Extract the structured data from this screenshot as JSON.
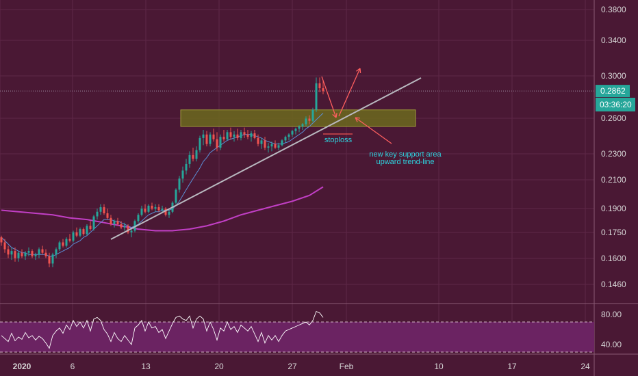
{
  "chart_data": {
    "type": "candlestick",
    "price_axis": {
      "ticks": [
        "0.3800",
        "0.3400",
        "0.3000",
        "0.2600",
        "0.2300",
        "0.2100",
        "0.1900",
        "0.1750",
        "0.1600",
        "0.1460"
      ],
      "scale": "log"
    },
    "rsi_axis": {
      "ticks": [
        "80.00",
        "40.00"
      ],
      "upper_band": 70,
      "lower_band": 30
    },
    "date_axis": {
      "ticks": [
        {
          "label": "2020",
          "bold": true
        },
        {
          "label": "6",
          "bold": false
        },
        {
          "label": "13",
          "bold": false
        },
        {
          "label": "20",
          "bold": false
        },
        {
          "label": "27",
          "bold": false
        },
        {
          "label": "Feb",
          "bold": false
        },
        {
          "label": "10",
          "bold": false
        },
        {
          "label": "17",
          "bold": false
        },
        {
          "label": "24",
          "bold": false
        }
      ]
    },
    "last_price": "0.2862",
    "countdown": "03:36:20",
    "annotations": {
      "stoploss": "stoploss",
      "support_line1": "new key support area",
      "support_line2": "upward trend-line"
    },
    "support_zone": {
      "low": 0.253,
      "high": 0.268
    },
    "colors": {
      "background": "#4a1834",
      "up": "#26a69a",
      "down": "#ef5350",
      "ma_fast": "#5b8fd6",
      "ma_slow": "#c13fc5",
      "trendline": "#b9b9c0",
      "zone": "#6b6a1e",
      "arrow": "#ff5f5f",
      "annotation": "#2dd4e0",
      "rsi_fill": "#6b2362",
      "rsi_line": "#ffffff",
      "badge": "#26a69a"
    },
    "candles_ohlc": [
      [
        0.172,
        0.173,
        0.167,
        0.169
      ],
      [
        0.169,
        0.171,
        0.163,
        0.165
      ],
      [
        0.165,
        0.167,
        0.16,
        0.162
      ],
      [
        0.162,
        0.166,
        0.159,
        0.164
      ],
      [
        0.164,
        0.166,
        0.158,
        0.16
      ],
      [
        0.16,
        0.164,
        0.158,
        0.163
      ],
      [
        0.163,
        0.165,
        0.16,
        0.161
      ],
      [
        0.161,
        0.164,
        0.159,
        0.163
      ],
      [
        0.163,
        0.166,
        0.161,
        0.164
      ],
      [
        0.164,
        0.165,
        0.16,
        0.161
      ],
      [
        0.161,
        0.163,
        0.159,
        0.162
      ],
      [
        0.162,
        0.166,
        0.16,
        0.165
      ],
      [
        0.165,
        0.167,
        0.162,
        0.163
      ],
      [
        0.163,
        0.165,
        0.16,
        0.161
      ],
      [
        0.161,
        0.163,
        0.155,
        0.157
      ],
      [
        0.157,
        0.163,
        0.155,
        0.162
      ],
      [
        0.162,
        0.166,
        0.16,
        0.165
      ],
      [
        0.165,
        0.17,
        0.164,
        0.169
      ],
      [
        0.169,
        0.171,
        0.166,
        0.167
      ],
      [
        0.167,
        0.172,
        0.166,
        0.171
      ],
      [
        0.171,
        0.174,
        0.169,
        0.17
      ],
      [
        0.17,
        0.176,
        0.169,
        0.175
      ],
      [
        0.175,
        0.178,
        0.172,
        0.173
      ],
      [
        0.173,
        0.178,
        0.172,
        0.177
      ],
      [
        0.177,
        0.178,
        0.173,
        0.174
      ],
      [
        0.174,
        0.18,
        0.173,
        0.179
      ],
      [
        0.179,
        0.182,
        0.176,
        0.177
      ],
      [
        0.177,
        0.186,
        0.176,
        0.185
      ],
      [
        0.185,
        0.19,
        0.183,
        0.188
      ],
      [
        0.188,
        0.193,
        0.186,
        0.191
      ],
      [
        0.191,
        0.193,
        0.186,
        0.187
      ],
      [
        0.187,
        0.19,
        0.183,
        0.184
      ],
      [
        0.184,
        0.186,
        0.179,
        0.18
      ],
      [
        0.18,
        0.183,
        0.178,
        0.182
      ],
      [
        0.182,
        0.184,
        0.179,
        0.18
      ],
      [
        0.18,
        0.182,
        0.177,
        0.178
      ],
      [
        0.178,
        0.181,
        0.176,
        0.179
      ],
      [
        0.179,
        0.18,
        0.174,
        0.175
      ],
      [
        0.175,
        0.177,
        0.172,
        0.176
      ],
      [
        0.176,
        0.183,
        0.175,
        0.182
      ],
      [
        0.182,
        0.187,
        0.181,
        0.186
      ],
      [
        0.186,
        0.192,
        0.185,
        0.19
      ],
      [
        0.19,
        0.193,
        0.187,
        0.188
      ],
      [
        0.188,
        0.193,
        0.187,
        0.192
      ],
      [
        0.192,
        0.194,
        0.189,
        0.19
      ],
      [
        0.19,
        0.193,
        0.188,
        0.191
      ],
      [
        0.191,
        0.193,
        0.188,
        0.189
      ],
      [
        0.189,
        0.192,
        0.187,
        0.19
      ],
      [
        0.19,
        0.191,
        0.185,
        0.186
      ],
      [
        0.186,
        0.189,
        0.184,
        0.188
      ],
      [
        0.188,
        0.195,
        0.187,
        0.194
      ],
      [
        0.194,
        0.204,
        0.193,
        0.203
      ],
      [
        0.203,
        0.213,
        0.201,
        0.211
      ],
      [
        0.211,
        0.22,
        0.208,
        0.217
      ],
      [
        0.217,
        0.226,
        0.214,
        0.222
      ],
      [
        0.222,
        0.232,
        0.219,
        0.229
      ],
      [
        0.229,
        0.235,
        0.224,
        0.226
      ],
      [
        0.226,
        0.236,
        0.224,
        0.233
      ],
      [
        0.233,
        0.245,
        0.231,
        0.243
      ],
      [
        0.243,
        0.25,
        0.237,
        0.246
      ],
      [
        0.246,
        0.249,
        0.236,
        0.238
      ],
      [
        0.238,
        0.248,
        0.236,
        0.246
      ],
      [
        0.246,
        0.251,
        0.24,
        0.242
      ],
      [
        0.242,
        0.248,
        0.232,
        0.235
      ],
      [
        0.235,
        0.246,
        0.233,
        0.244
      ],
      [
        0.244,
        0.25,
        0.24,
        0.242
      ],
      [
        0.242,
        0.25,
        0.241,
        0.248
      ],
      [
        0.248,
        0.252,
        0.242,
        0.244
      ],
      [
        0.244,
        0.249,
        0.24,
        0.246
      ],
      [
        0.246,
        0.251,
        0.241,
        0.243
      ],
      [
        0.243,
        0.25,
        0.241,
        0.248
      ],
      [
        0.248,
        0.252,
        0.243,
        0.246
      ],
      [
        0.246,
        0.25,
        0.242,
        0.244
      ],
      [
        0.244,
        0.249,
        0.24,
        0.247
      ],
      [
        0.247,
        0.25,
        0.242,
        0.243
      ],
      [
        0.243,
        0.246,
        0.236,
        0.238
      ],
      [
        0.238,
        0.243,
        0.234,
        0.241
      ],
      [
        0.241,
        0.244,
        0.233,
        0.235
      ],
      [
        0.235,
        0.239,
        0.231,
        0.236
      ],
      [
        0.236,
        0.24,
        0.232,
        0.238
      ],
      [
        0.238,
        0.241,
        0.234,
        0.235
      ],
      [
        0.235,
        0.239,
        0.233,
        0.237
      ],
      [
        0.237,
        0.242,
        0.236,
        0.241
      ],
      [
        0.241,
        0.245,
        0.239,
        0.244
      ],
      [
        0.244,
        0.247,
        0.241,
        0.246
      ],
      [
        0.246,
        0.25,
        0.244,
        0.249
      ],
      [
        0.249,
        0.252,
        0.246,
        0.251
      ],
      [
        0.251,
        0.254,
        0.248,
        0.253
      ],
      [
        0.253,
        0.256,
        0.25,
        0.255
      ],
      [
        0.255,
        0.262,
        0.253,
        0.26
      ],
      [
        0.26,
        0.263,
        0.255,
        0.258
      ],
      [
        0.258,
        0.27,
        0.257,
        0.268
      ],
      [
        0.268,
        0.3,
        0.266,
        0.294
      ],
      [
        0.294,
        0.3,
        0.285,
        0.289
      ],
      [
        0.289,
        0.297,
        0.283,
        0.286
      ]
    ],
    "ma_fast": [
      0.172,
      0.17,
      0.168,
      0.166,
      0.165,
      0.164,
      0.163,
      0.163,
      0.162,
      0.162,
      0.162,
      0.162,
      0.162,
      0.162,
      0.161,
      0.161,
      0.162,
      0.163,
      0.164,
      0.165,
      0.166,
      0.168,
      0.169,
      0.17,
      0.172,
      0.173,
      0.175,
      0.177,
      0.179,
      0.181,
      0.183,
      0.183,
      0.183,
      0.182,
      0.182,
      0.181,
      0.18,
      0.179,
      0.178,
      0.179,
      0.18,
      0.182,
      0.184,
      0.186,
      0.187,
      0.188,
      0.188,
      0.189,
      0.189,
      0.189,
      0.19,
      0.192,
      0.195,
      0.199,
      0.203,
      0.207,
      0.211,
      0.215,
      0.219,
      0.224,
      0.227,
      0.231,
      0.233,
      0.235,
      0.237,
      0.239,
      0.241,
      0.242,
      0.243,
      0.244,
      0.245,
      0.246,
      0.246,
      0.246,
      0.245,
      0.244,
      0.243,
      0.241,
      0.24,
      0.239,
      0.238,
      0.238,
      0.238,
      0.239,
      0.24,
      0.242,
      0.244,
      0.246,
      0.248,
      0.251,
      0.253,
      0.256,
      0.259,
      0.262,
      0.265
    ],
    "ma_slow": [
      [
        0,
        0.189
      ],
      [
        5,
        0.188
      ],
      [
        10,
        0.187
      ],
      [
        15,
        0.186
      ],
      [
        20,
        0.184
      ],
      [
        25,
        0.183
      ],
      [
        30,
        0.181
      ],
      [
        35,
        0.179
      ],
      [
        40,
        0.177
      ],
      [
        45,
        0.176
      ],
      [
        50,
        0.176
      ],
      [
        55,
        0.177
      ],
      [
        60,
        0.179
      ],
      [
        65,
        0.182
      ],
      [
        70,
        0.186
      ],
      [
        75,
        0.189
      ],
      [
        80,
        0.192
      ],
      [
        85,
        0.195
      ],
      [
        90,
        0.199
      ],
      [
        94,
        0.205
      ]
    ],
    "rsi": [
      52,
      48,
      44,
      55,
      45,
      50,
      47,
      56,
      49,
      52,
      46,
      51,
      48,
      42,
      35,
      52,
      58,
      62,
      55,
      66,
      60,
      72,
      64,
      70,
      62,
      72,
      58,
      74,
      76,
      72,
      60,
      54,
      44,
      56,
      48,
      44,
      52,
      46,
      40,
      62,
      66,
      72,
      58,
      70,
      62,
      64,
      56,
      60,
      48,
      58,
      68,
      76,
      78,
      74,
      72,
      78,
      62,
      74,
      78,
      74,
      58,
      70,
      60,
      46,
      62,
      58,
      70,
      60,
      64,
      56,
      66,
      62,
      58,
      64,
      54,
      44,
      56,
      42,
      52,
      46,
      52,
      44,
      52,
      58,
      60,
      62,
      64,
      66,
      68,
      70,
      66,
      72,
      84,
      82,
      76
    ]
  }
}
